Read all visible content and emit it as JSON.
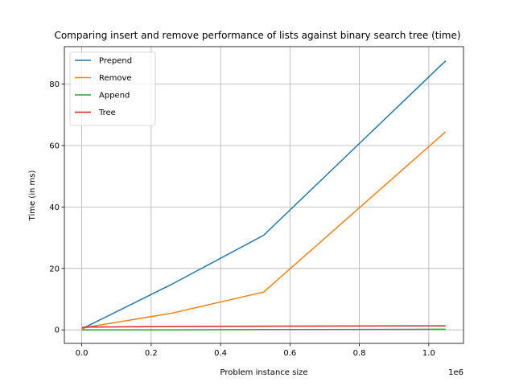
{
  "chart_data": {
    "type": "line",
    "title": "Comparing insert and remove performance of lists against binary search tree (time)",
    "xlabel": "Problem instance size",
    "ylabel": "Time (in ms)",
    "x_offset_label": "1e6",
    "xlim": [
      -50000,
      1100000
    ],
    "ylim": [
      -4.4,
      92.2
    ],
    "x_ticks": [
      0,
      200000,
      400000,
      600000,
      800000,
      1000000
    ],
    "x_tick_labels": [
      "0.0",
      "0.2",
      "0.4",
      "0.6",
      "0.8",
      "1.0"
    ],
    "y_ticks": [
      0,
      20,
      40,
      60,
      80
    ],
    "y_tick_labels": [
      "0",
      "20",
      "40",
      "60",
      "80"
    ],
    "grid": true,
    "legend_position": "top-left",
    "x": [
      1024,
      16384,
      262144,
      524288,
      1048576
    ],
    "series": [
      {
        "name": "Prepend",
        "color": "#1f77b4",
        "values": [
          0.2,
          1.2,
          15.0,
          30.8,
          87.6
        ]
      },
      {
        "name": "Remove",
        "color": "#ff7f0e",
        "values": [
          0.3,
          0.9,
          5.5,
          12.3,
          64.5
        ]
      },
      {
        "name": "Append",
        "color": "#2ca02c",
        "values": [
          0.0,
          0.0,
          0.0,
          0.1,
          0.2
        ]
      },
      {
        "name": "Tree",
        "color": "#d62728",
        "values": [
          0.8,
          0.9,
          1.1,
          1.2,
          1.3
        ]
      }
    ]
  }
}
